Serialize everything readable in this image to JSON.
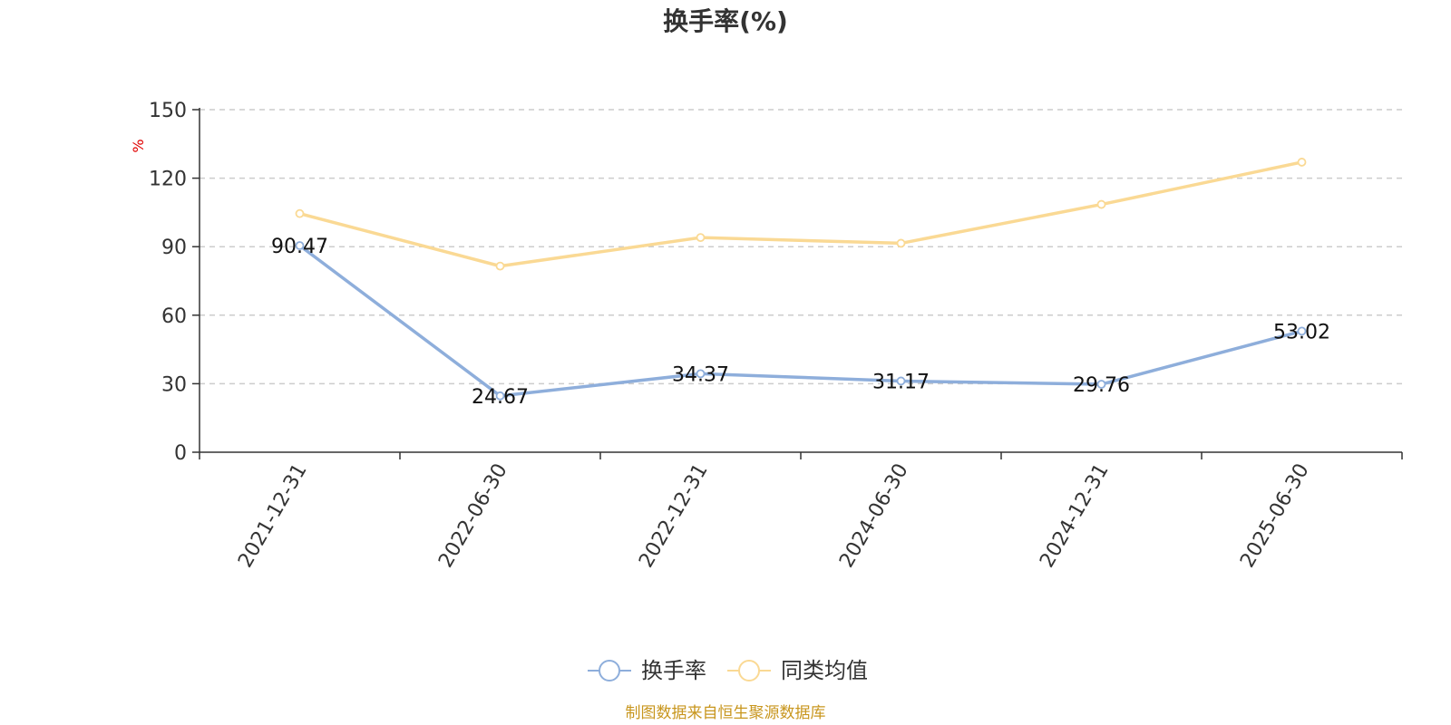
{
  "chart_data": {
    "type": "line",
    "title": "换手率(%)",
    "ylabel": "%",
    "xlabel": "",
    "categories": [
      "2021-12-31",
      "2022-06-30",
      "2022-12-31",
      "2024-06-30",
      "2024-12-31",
      "2025-06-30"
    ],
    "ylim": [
      0,
      150
    ],
    "yticks": [
      0,
      30,
      60,
      90,
      120,
      150
    ],
    "grid": true,
    "legend_position": "bottom-center",
    "series": [
      {
        "name": "换手率",
        "values": [
          90.47,
          24.67,
          34.37,
          31.17,
          29.76,
          53.02
        ],
        "labels": [
          "90.47",
          "24.67",
          "34.37",
          "31.17",
          "29.76",
          "53.02"
        ],
        "color": "#8EAEDB"
      },
      {
        "name": "同类均值",
        "values": [
          104.5,
          81.5,
          94.0,
          91.5,
          108.5,
          127.0
        ],
        "color": "#FAD994"
      }
    ],
    "source": "制图数据来自恒生聚源数据库"
  },
  "colors": {
    "axis": "#333333",
    "grid": "#cccccc",
    "unit_label": "#e00000",
    "source_text": "#c8961e",
    "title": "#333333"
  }
}
